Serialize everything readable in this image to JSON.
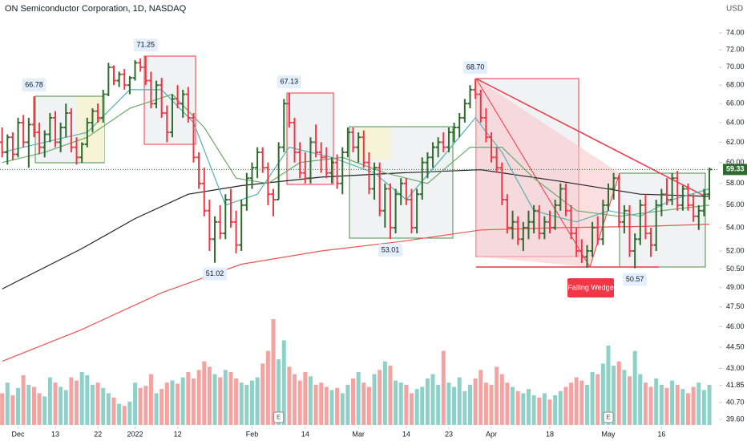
{
  "chart_data": {
    "type": "ohlc",
    "title": "ON Semiconductor Corporation, 1D, NASDAQ",
    "currency": "USD",
    "log_scale": true,
    "ylim": [
      39.6,
      74
    ],
    "yticks": [
      {
        "value": 74,
        "label": "74.00"
      },
      {
        "value": 72,
        "label": "72.00"
      },
      {
        "value": 70,
        "label": "70.00"
      },
      {
        "value": 68,
        "label": "68.00"
      },
      {
        "value": 66,
        "label": "66.00"
      },
      {
        "value": 64,
        "label": "64.00"
      },
      {
        "value": 62,
        "label": "62.00"
      },
      {
        "value": 60,
        "label": "60.00"
      },
      {
        "value": 58,
        "label": "58.00"
      },
      {
        "value": 56,
        "label": "56.00"
      },
      {
        "value": 54,
        "label": "54.00"
      },
      {
        "value": 52,
        "label": "52.00"
      },
      {
        "value": 50.5,
        "label": "50.50"
      },
      {
        "value": 49,
        "label": "49.00"
      },
      {
        "value": 47.5,
        "label": "47.50"
      },
      {
        "value": 46,
        "label": "46.00"
      },
      {
        "value": 44.5,
        "label": "44.50"
      },
      {
        "value": 43,
        "label": "43.00"
      },
      {
        "value": 41.85,
        "label": "41.85"
      },
      {
        "value": 40.7,
        "label": "40.70"
      },
      {
        "value": 39.6,
        "label": "39.60"
      }
    ],
    "xlim": [
      -0.4,
      134.5
    ],
    "xticks": [
      {
        "value": 3,
        "label": "Dec"
      },
      {
        "value": 10,
        "label": "13"
      },
      {
        "value": 18,
        "label": "22"
      },
      {
        "value": 25,
        "label": "2022"
      },
      {
        "value": 33,
        "label": "12"
      },
      {
        "value": 47,
        "label": "Feb"
      },
      {
        "value": 57,
        "label": "14"
      },
      {
        "value": 67,
        "label": "Mar"
      },
      {
        "value": 76,
        "label": "14"
      },
      {
        "value": 84,
        "label": "23"
      },
      {
        "value": 92,
        "label": "Apr"
      },
      {
        "value": 103,
        "label": "18"
      },
      {
        "value": 114,
        "label": "May"
      },
      {
        "value": 124,
        "label": "16"
      }
    ],
    "up_color": "#2e6b2e",
    "down_color": "#f23645",
    "volume_up_color": "#8fd1c8",
    "volume_down_color": "#f5a3a1",
    "ohlc": [
      [
        62.0,
        63.5,
        60.5,
        61.0
      ],
      [
        61.0,
        62.8,
        59.8,
        62.5
      ],
      [
        62.5,
        63.0,
        60.2,
        60.8
      ],
      [
        60.8,
        64.5,
        60.5,
        64.0
      ],
      [
        64.0,
        64.8,
        61.5,
        62.0
      ],
      [
        62.0,
        64.5,
        59.5,
        63.8
      ],
      [
        63.8,
        66.78,
        62.5,
        63.0
      ],
      [
        63.0,
        64.0,
        60.8,
        61.5
      ],
      [
        61.5,
        63.2,
        60.5,
        62.8
      ],
      [
        62.8,
        65.0,
        62.0,
        64.5
      ],
      [
        64.5,
        65.2,
        61.5,
        62.0
      ],
      [
        62.0,
        64.0,
        61.0,
        63.5
      ],
      [
        63.5,
        66.0,
        62.5,
        65.0
      ],
      [
        65.0,
        65.5,
        61.0,
        61.5
      ],
      [
        61.5,
        62.5,
        59.8,
        60.5
      ],
      [
        60.5,
        62.0,
        60.0,
        61.8
      ],
      [
        61.8,
        64.5,
        61.5,
        64.0
      ],
      [
        64.0,
        65.5,
        63.0,
        65.2
      ],
      [
        65.2,
        66.0,
        64.0,
        64.5
      ],
      [
        64.5,
        67.5,
        64.0,
        67.0
      ],
      [
        67.0,
        70.5,
        66.8,
        70.0
      ],
      [
        70.0,
        70.2,
        68.0,
        68.5
      ],
      [
        68.5,
        69.5,
        67.8,
        69.2
      ],
      [
        69.2,
        69.8,
        67.5,
        68.0
      ],
      [
        68.0,
        69.0,
        67.0,
        68.8
      ],
      [
        68.8,
        70.8,
        68.5,
        70.5
      ],
      [
        70.5,
        71.0,
        69.5,
        70.0
      ],
      [
        70.0,
        71.25,
        68.0,
        68.5
      ],
      [
        68.5,
        69.5,
        65.5,
        66.0
      ],
      [
        66.0,
        68.5,
        65.5,
        68.0
      ],
      [
        68.0,
        68.8,
        64.5,
        65.0
      ],
      [
        65.0,
        65.8,
        62.0,
        63.0
      ],
      [
        63.0,
        67.0,
        62.5,
        66.5
      ],
      [
        66.5,
        68.0,
        65.5,
        66.0
      ],
      [
        66.0,
        67.5,
        64.5,
        67.0
      ],
      [
        67.0,
        67.8,
        64.0,
        64.5
      ],
      [
        64.5,
        65.0,
        60.0,
        60.5
      ],
      [
        60.5,
        61.0,
        57.5,
        58.0
      ],
      [
        58.0,
        59.5,
        55.0,
        55.5
      ],
      [
        55.5,
        56.5,
        52.0,
        53.0
      ],
      [
        53.0,
        55.0,
        51.02,
        54.5
      ],
      [
        54.5,
        56.0,
        53.0,
        53.5
      ],
      [
        53.5,
        57.0,
        53.0,
        56.5
      ],
      [
        56.5,
        57.5,
        54.0,
        54.5
      ],
      [
        54.5,
        55.5,
        51.8,
        52.5
      ],
      [
        52.5,
        56.5,
        52.0,
        56.0
      ],
      [
        56.0,
        59.0,
        55.5,
        58.5
      ],
      [
        58.5,
        60.0,
        57.5,
        59.5
      ],
      [
        59.5,
        61.5,
        58.5,
        61.0
      ],
      [
        61.0,
        61.5,
        59.0,
        59.5
      ],
      [
        59.5,
        60.0,
        56.0,
        57.0
      ],
      [
        57.0,
        57.5,
        55.0,
        56.5
      ],
      [
        56.5,
        62.0,
        56.5,
        61.5
      ],
      [
        61.5,
        66.5,
        61.0,
        66.0
      ],
      [
        66.0,
        67.13,
        63.5,
        64.0
      ],
      [
        64.0,
        64.5,
        60.0,
        61.0
      ],
      [
        61.0,
        62.0,
        58.5,
        59.0
      ],
      [
        59.0,
        61.0,
        58.0,
        58.5
      ],
      [
        58.5,
        62.5,
        58.0,
        62.0
      ],
      [
        62.0,
        63.8,
        60.5,
        61.0
      ],
      [
        61.0,
        62.0,
        59.0,
        60.5
      ],
      [
        60.5,
        61.5,
        58.5,
        59.0
      ],
      [
        59.0,
        60.5,
        58.0,
        60.0
      ],
      [
        60.0,
        60.8,
        57.5,
        58.0
      ],
      [
        58.0,
        61.5,
        57.0,
        61.0
      ],
      [
        61.0,
        63.5,
        60.5,
        63.0
      ],
      [
        63.0,
        63.5,
        61.0,
        61.5
      ],
      [
        61.5,
        63.0,
        60.0,
        62.5
      ],
      [
        62.5,
        63.2,
        59.5,
        60.0
      ],
      [
        60.0,
        61.0,
        57.0,
        57.5
      ],
      [
        57.5,
        60.0,
        56.5,
        59.5
      ],
      [
        59.5,
        60.0,
        55.0,
        55.5
      ],
      [
        55.5,
        58.0,
        54.0,
        57.5
      ],
      [
        57.5,
        58.0,
        53.01,
        54.0
      ],
      [
        54.0,
        57.5,
        53.5,
        57.0
      ],
      [
        57.0,
        58.5,
        56.0,
        58.0
      ],
      [
        58.0,
        58.5,
        56.0,
        56.5
      ],
      [
        56.5,
        57.5,
        53.5,
        54.0
      ],
      [
        54.0,
        57.5,
        53.5,
        57.0
      ],
      [
        57.0,
        60.5,
        56.5,
        60.0
      ],
      [
        60.0,
        61.0,
        58.5,
        60.5
      ],
      [
        60.5,
        62.0,
        59.5,
        61.5
      ],
      [
        61.5,
        62.5,
        60.5,
        62.0
      ],
      [
        62.0,
        63.0,
        61.0,
        61.5
      ],
      [
        61.5,
        63.5,
        61.0,
        63.0
      ],
      [
        63.0,
        64.0,
        62.0,
        63.5
      ],
      [
        63.5,
        65.0,
        62.5,
        64.5
      ],
      [
        64.5,
        66.5,
        64.0,
        66.0
      ],
      [
        66.0,
        68.0,
        65.5,
        67.5
      ],
      [
        67.5,
        68.7,
        66.5,
        67.0
      ],
      [
        67.0,
        67.5,
        64.0,
        64.5
      ],
      [
        64.5,
        65.5,
        62.0,
        62.5
      ],
      [
        62.5,
        63.0,
        60.0,
        60.5
      ],
      [
        60.5,
        61.5,
        59.0,
        59.5
      ],
      [
        59.5,
        60.0,
        56.0,
        56.5
      ],
      [
        56.5,
        57.0,
        53.5,
        54.0
      ],
      [
        54.0,
        55.5,
        53.0,
        54.5
      ],
      [
        54.5,
        55.0,
        52.5,
        53.0
      ],
      [
        53.0,
        54.5,
        52.0,
        54.0
      ],
      [
        54.0,
        55.5,
        53.0,
        54.5
      ],
      [
        54.5,
        56.0,
        53.5,
        55.5
      ],
      [
        55.5,
        56.0,
        53.0,
        53.5
      ],
      [
        53.5,
        55.0,
        53.0,
        54.5
      ],
      [
        54.5,
        55.5,
        53.5,
        54.0
      ],
      [
        54.0,
        56.5,
        53.8,
        56.0
      ],
      [
        56.0,
        58.0,
        55.5,
        57.5
      ],
      [
        57.5,
        58.0,
        55.0,
        55.5
      ],
      [
        55.5,
        56.0,
        53.0,
        53.5
      ],
      [
        53.5,
        54.0,
        51.5,
        52.0
      ],
      [
        52.0,
        53.0,
        51.0,
        51.5
      ],
      [
        51.5,
        52.5,
        50.6,
        52.0
      ],
      [
        52.0,
        54.5,
        51.5,
        54.0
      ],
      [
        54.0,
        55.0,
        52.5,
        53.0
      ],
      [
        53.0,
        56.5,
        52.5,
        56.0
      ],
      [
        56.0,
        58.0,
        55.5,
        57.5
      ],
      [
        57.5,
        59.0,
        56.5,
        58.5
      ],
      [
        58.5,
        58.8,
        54.0,
        54.5
      ],
      [
        54.5,
        56.0,
        53.5,
        55.5
      ],
      [
        55.5,
        56.0,
        51.5,
        52.0
      ],
      [
        52.0,
        53.5,
        50.57,
        53.0
      ],
      [
        53.0,
        56.5,
        52.5,
        56.0
      ],
      [
        56.0,
        57.0,
        53.0,
        53.5
      ],
      [
        53.5,
        54.0,
        51.5,
        52.5
      ],
      [
        52.5,
        56.5,
        52.0,
        56.0
      ],
      [
        56.0,
        57.5,
        55.0,
        57.0
      ],
      [
        57.0,
        58.5,
        56.0,
        56.5
      ],
      [
        56.5,
        59.0,
        56.0,
        58.5
      ],
      [
        58.5,
        59.2,
        55.5,
        56.0
      ],
      [
        56.0,
        57.8,
        55.5,
        57.5
      ],
      [
        57.5,
        58.0,
        55.5,
        56.0
      ],
      [
        56.0,
        57.0,
        54.5,
        55.0
      ],
      [
        55.0,
        56.0,
        53.8,
        55.5
      ],
      [
        55.5,
        57.5,
        55.0,
        57.0
      ],
      [
        57.0,
        59.5,
        56.5,
        59.33
      ]
    ],
    "volume_lim": [
      0,
      100
    ],
    "volume": [
      30,
      40,
      28,
      35,
      47,
      38,
      36,
      30,
      27,
      45,
      40,
      36,
      33,
      45,
      42,
      50,
      47,
      38,
      40,
      35,
      30,
      26,
      20,
      18,
      22,
      40,
      35,
      37,
      48,
      30,
      34,
      40,
      42,
      39,
      45,
      50,
      44,
      52,
      60,
      55,
      48,
      45,
      52,
      50,
      44,
      40,
      38,
      42,
      45,
      58,
      70,
      100,
      62,
      80,
      55,
      48,
      42,
      50,
      46,
      38,
      40,
      36,
      33,
      35,
      30,
      38,
      44,
      50,
      40,
      36,
      48,
      52,
      60,
      56,
      42,
      40,
      38,
      30,
      34,
      36,
      44,
      48,
      38,
      70,
      40,
      36,
      45,
      32,
      38,
      44,
      52,
      40,
      38,
      55,
      48,
      40,
      36,
      32,
      30,
      34,
      28,
      26,
      30,
      24,
      28,
      32,
      36,
      40,
      45,
      42,
      38,
      50,
      48,
      58,
      75,
      56,
      60,
      52,
      46,
      70,
      48,
      40,
      36,
      44,
      38,
      35,
      42,
      38,
      34,
      30,
      36,
      40,
      33,
      38
    ],
    "ma_lines": [
      {
        "color": "#ef5350",
        "x": [
          0,
          15,
          30,
          45,
          60,
          75,
          90,
          105,
          120,
          133
        ],
        "values": [
          43.5,
          45.8,
          48.6,
          50.9,
          52.0,
          52.8,
          53.8,
          54.0,
          54.1,
          54.3
        ]
      },
      {
        "color": "#222222",
        "x": [
          0,
          15,
          25,
          35,
          45,
          60,
          75,
          90,
          105,
          120,
          133
        ],
        "values": [
          48.9,
          52.2,
          54.8,
          57.0,
          57.8,
          58.6,
          59.0,
          59.3,
          58.2,
          57.0,
          56.8
        ]
      },
      {
        "color": "#6aa86a",
        "x": [
          0,
          8,
          16,
          24,
          32,
          38,
          44,
          50,
          56,
          64,
          72,
          80,
          88,
          94,
          100,
          108,
          116,
          124,
          133
        ],
        "values": [
          60.0,
          61.0,
          62.5,
          65.5,
          67.0,
          63.5,
          58.5,
          58.0,
          60.0,
          60.5,
          59.0,
          58.0,
          61.5,
          61.5,
          58.5,
          55.5,
          55.0,
          55.5,
          56.0
        ]
      },
      {
        "color": "#4fb3b0",
        "x": [
          0,
          8,
          16,
          24,
          30,
          36,
          42,
          48,
          54,
          62,
          70,
          76,
          82,
          89,
          94,
          100,
          108,
          114,
          120,
          126,
          133
        ],
        "values": [
          61.0,
          62.0,
          63.0,
          67.5,
          67.5,
          64.0,
          56.0,
          57.0,
          61.5,
          60.5,
          59.0,
          56.5,
          60.0,
          64.5,
          61.0,
          55.5,
          54.5,
          55.5,
          55.0,
          56.5,
          57.5
        ]
      }
    ],
    "price_labels": [
      {
        "x": 6,
        "value": 66.78,
        "position": "above"
      },
      {
        "x": 27,
        "value": 71.25,
        "position": "above"
      },
      {
        "x": 40,
        "value": 51.02,
        "position": "below"
      },
      {
        "x": 54,
        "value": 67.13,
        "position": "above"
      },
      {
        "x": 73,
        "value": 53.01,
        "position": "below"
      },
      {
        "x": 89,
        "value": 68.7,
        "label": "68.70",
        "position": "above"
      },
      {
        "x": 119,
        "value": 50.57,
        "position": "below"
      }
    ],
    "pattern_label": "Falling Wedge",
    "earnings_markers": [
      {
        "x": 52,
        "label": "E"
      },
      {
        "x": 114,
        "label": "E"
      }
    ]
  }
}
